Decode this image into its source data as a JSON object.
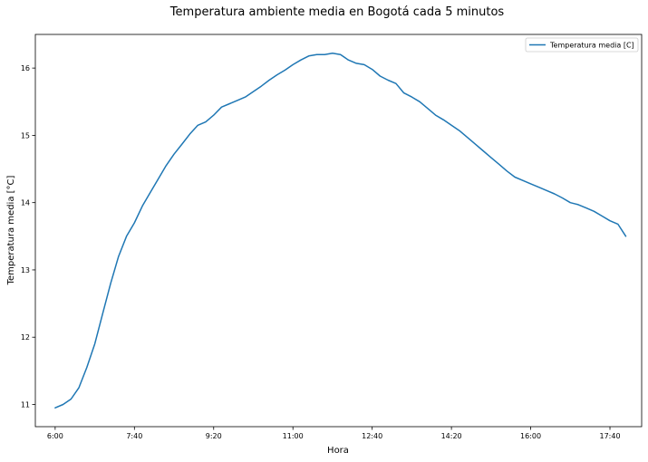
{
  "chart_data": {
    "type": "line",
    "title": "Temperatura ambiente media en Bogotá cada 5 minutos",
    "xlabel": "Hora",
    "ylabel": "Temperatura media [°C]",
    "x_ticks": [
      "6:00",
      "7:40",
      "9:20",
      "11:00",
      "12:40",
      "14:20",
      "16:00",
      "17:40"
    ],
    "y_ticks": [
      11,
      12,
      13,
      14,
      15,
      16
    ],
    "xlim": [
      "5:35",
      "18:20"
    ],
    "ylim": [
      10.67,
      16.5
    ],
    "legend": {
      "position": "top-right"
    },
    "grid": false,
    "series": [
      {
        "name": "Temperatura media [C]",
        "color": "#1f77b4",
        "points": [
          [
            "6:00",
            10.95
          ],
          [
            "6:10",
            11.0
          ],
          [
            "6:20",
            11.08
          ],
          [
            "6:30",
            11.25
          ],
          [
            "6:40",
            11.55
          ],
          [
            "6:50",
            11.9
          ],
          [
            "7:00",
            12.35
          ],
          [
            "7:10",
            12.8
          ],
          [
            "7:20",
            13.2
          ],
          [
            "7:30",
            13.5
          ],
          [
            "7:40",
            13.7
          ],
          [
            "7:50",
            13.95
          ],
          [
            "8:00",
            14.15
          ],
          [
            "8:10",
            14.35
          ],
          [
            "8:20",
            14.55
          ],
          [
            "8:30",
            14.72
          ],
          [
            "8:40",
            14.87
          ],
          [
            "8:50",
            15.02
          ],
          [
            "9:00",
            15.15
          ],
          [
            "9:10",
            15.2
          ],
          [
            "9:20",
            15.3
          ],
          [
            "9:30",
            15.42
          ],
          [
            "9:40",
            15.47
          ],
          [
            "9:50",
            15.52
          ],
          [
            "10:00",
            15.57
          ],
          [
            "10:10",
            15.65
          ],
          [
            "10:20",
            15.73
          ],
          [
            "10:30",
            15.82
          ],
          [
            "10:40",
            15.9
          ],
          [
            "10:50",
            15.97
          ],
          [
            "11:00",
            16.05
          ],
          [
            "11:10",
            16.12
          ],
          [
            "11:20",
            16.18
          ],
          [
            "11:30",
            16.2
          ],
          [
            "11:40",
            16.2
          ],
          [
            "11:50",
            16.22
          ],
          [
            "12:00",
            16.2
          ],
          [
            "12:10",
            16.12
          ],
          [
            "12:20",
            16.07
          ],
          [
            "12:30",
            16.05
          ],
          [
            "12:40",
            15.98
          ],
          [
            "12:50",
            15.88
          ],
          [
            "13:00",
            15.82
          ],
          [
            "13:10",
            15.77
          ],
          [
            "13:20",
            15.63
          ],
          [
            "13:30",
            15.57
          ],
          [
            "13:40",
            15.5
          ],
          [
            "13:50",
            15.4
          ],
          [
            "14:00",
            15.3
          ],
          [
            "14:10",
            15.23
          ],
          [
            "14:20",
            15.15
          ],
          [
            "14:30",
            15.07
          ],
          [
            "14:40",
            14.97
          ],
          [
            "14:50",
            14.87
          ],
          [
            "15:00",
            14.77
          ],
          [
            "15:10",
            14.67
          ],
          [
            "15:20",
            14.57
          ],
          [
            "15:30",
            14.47
          ],
          [
            "15:40",
            14.38
          ],
          [
            "15:50",
            14.33
          ],
          [
            "16:00",
            14.28
          ],
          [
            "16:10",
            14.23
          ],
          [
            "16:20",
            14.18
          ],
          [
            "16:30",
            14.13
          ],
          [
            "16:40",
            14.07
          ],
          [
            "16:50",
            14.0
          ],
          [
            "17:00",
            13.97
          ],
          [
            "17:10",
            13.92
          ],
          [
            "17:20",
            13.87
          ],
          [
            "17:30",
            13.8
          ],
          [
            "17:40",
            13.73
          ],
          [
            "17:50",
            13.68
          ],
          [
            "18:00",
            13.5
          ]
        ]
      }
    ]
  }
}
